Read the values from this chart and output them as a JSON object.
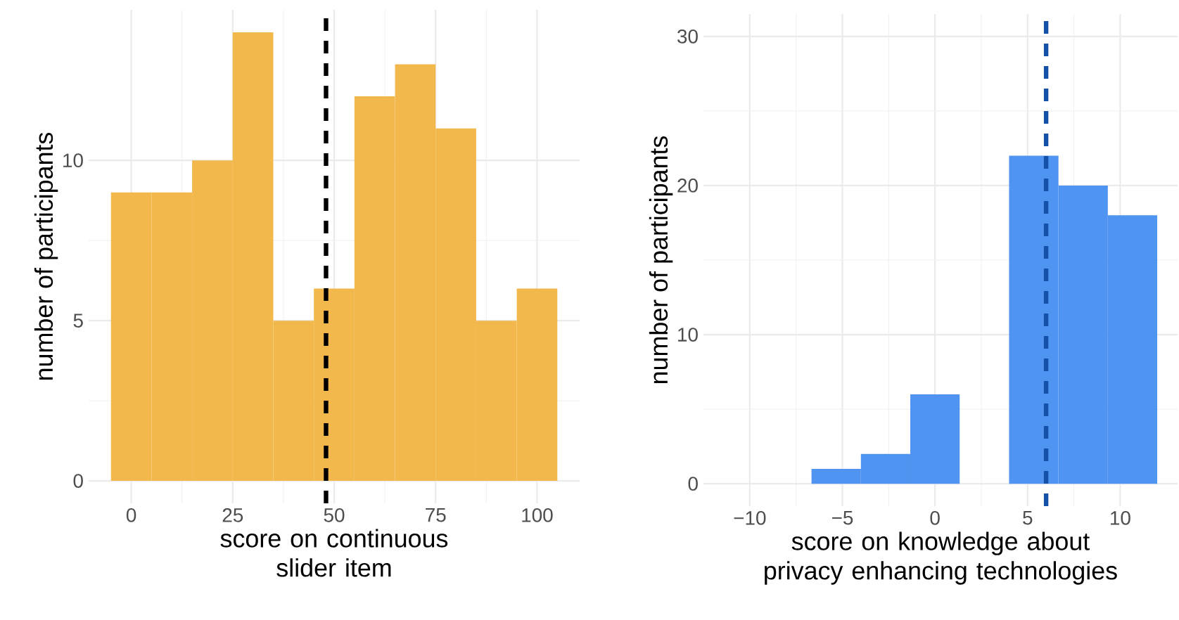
{
  "chart_data": [
    {
      "type": "histogram",
      "bins": [
        -5,
        5,
        15,
        25,
        35,
        45,
        55,
        65,
        75,
        85,
        95,
        105
      ],
      "values": [
        9,
        9,
        10,
        14,
        5,
        6,
        12,
        13,
        11,
        5,
        6
      ],
      "color": "#f2b84b",
      "xlabel": "score on continuous slider item",
      "ylabel": "number of participants",
      "xlim": [
        -10.5,
        110.5
      ],
      "ylim": [
        -0.7,
        14.7
      ],
      "xticks": [
        0,
        25,
        50,
        75,
        100
      ],
      "yticks": [
        0,
        5,
        10
      ],
      "grid": true,
      "ref_lines": [
        {
          "axis": "x",
          "value": 48,
          "color": "#000000",
          "line_style": "dashed"
        }
      ]
    },
    {
      "type": "histogram",
      "bins": [
        -12,
        -9.333,
        -6.667,
        -4,
        -1.333,
        1.333,
        4,
        6.667,
        9.333,
        12
      ],
      "values": [
        0,
        0,
        1,
        2,
        6,
        0,
        22,
        20,
        18
      ],
      "color": "#4f94f0",
      "xlabel": "score on knowledge about privacy enhancing technologies",
      "ylabel": "number of participants",
      "xlim": [
        -12.5,
        13.1
      ],
      "ylim": [
        -1.5,
        31.5
      ],
      "xticks": [
        {
          "value": -10,
          "label": "−10"
        },
        {
          "value": -5,
          "label": "−5"
        },
        0,
        5,
        10
      ],
      "yticks": [
        0,
        10,
        20,
        30
      ],
      "grid": true,
      "ref_lines": [
        {
          "axis": "x",
          "value": 6,
          "color": "#1550a8",
          "line_style": "dashed"
        }
      ]
    }
  ]
}
